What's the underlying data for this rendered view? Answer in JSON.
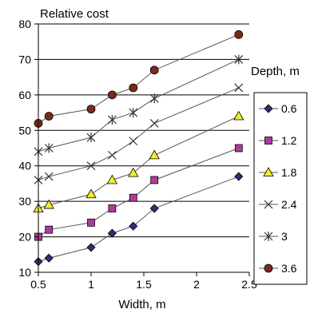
{
  "chart_data": {
    "type": "line",
    "ylabel": "Relative cost",
    "xlabel": "Width, m",
    "legend_title": "Depth, m",
    "legend_position": "right",
    "grid": "horizontal",
    "xlim": [
      0.5,
      2.5
    ],
    "ylim": [
      10,
      80
    ],
    "x_ticks": [
      "0.5",
      "1",
      "1.5",
      "2",
      "2.5"
    ],
    "y_ticks": [
      "10",
      "20",
      "30",
      "40",
      "50",
      "60",
      "70",
      "80"
    ],
    "x": [
      0.5,
      0.6,
      1.0,
      1.2,
      1.4,
      1.6,
      2.4
    ],
    "series": [
      {
        "name": "0.6",
        "marker": "diamond",
        "color": "#2e2e7a",
        "values": [
          13,
          14,
          17,
          21,
          23,
          28,
          37
        ]
      },
      {
        "name": "1.2",
        "marker": "square",
        "color": "#b03a9c",
        "values": [
          20,
          22,
          24,
          28,
          31,
          36,
          45
        ]
      },
      {
        "name": "1.8",
        "marker": "triangle",
        "color": "#f2ee2a",
        "values": [
          28,
          29,
          32,
          36,
          38,
          43,
          54
        ]
      },
      {
        "name": "2.4",
        "marker": "x",
        "color": "#333333",
        "values": [
          36,
          37,
          40,
          43,
          47,
          52,
          62
        ]
      },
      {
        "name": "3",
        "marker": "star",
        "color": "#333333",
        "values": [
          44,
          45,
          48,
          53,
          55,
          59,
          70
        ]
      },
      {
        "name": "3.6",
        "marker": "circle",
        "color": "#7a2b18",
        "values": [
          52,
          54,
          56,
          60,
          62,
          67,
          77
        ]
      }
    ]
  }
}
